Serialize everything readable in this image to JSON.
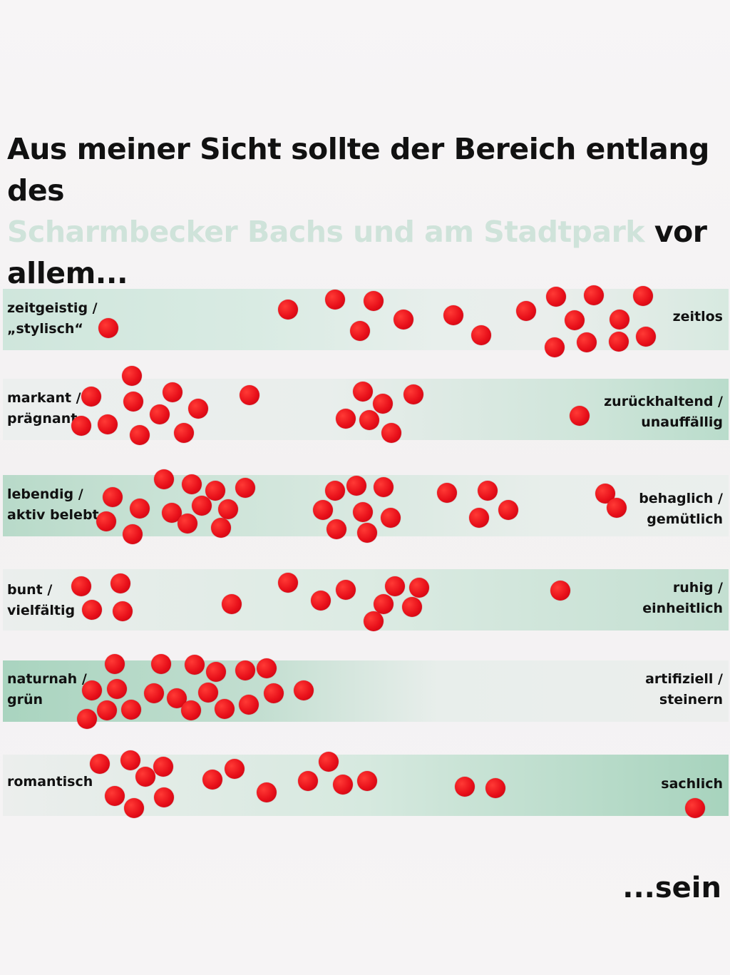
{
  "heading": {
    "line1": "Aus meiner Sicht sollte der Bereich entlang des",
    "highlight": "Scharmbecker Bachs und am Stadtpark",
    "after_highlight": " vor",
    "line3": "allem..."
  },
  "scales": [
    {
      "left_1": "zeitgeistig /",
      "left_2": "„stylisch“",
      "right_1": "zeitlos",
      "right_2": ""
    },
    {
      "left_1": "markant /",
      "left_2": "prägnant",
      "right_1": "zurückhaltend /",
      "right_2": "unauffällig"
    },
    {
      "left_1": "lebendig /",
      "left_2": "aktiv belebt",
      "right_1": "behaglich /",
      "right_2": "gemütlich"
    },
    {
      "left_1": "bunt /",
      "left_2": "vielfältig",
      "right_1": "ruhig /",
      "right_2": "einheitlich"
    },
    {
      "left_1": "naturnah /",
      "left_2": "grün",
      "right_1": "artifiziell /",
      "right_2": "steinern"
    },
    {
      "left_1": "romantisch",
      "left_2": "",
      "right_1": "sachlich",
      "right_2": ""
    }
  ],
  "footer": "...sein",
  "colors": {
    "dot": "#e8101a",
    "band": "#b8dac9",
    "highlight": "#cfe3da"
  }
}
